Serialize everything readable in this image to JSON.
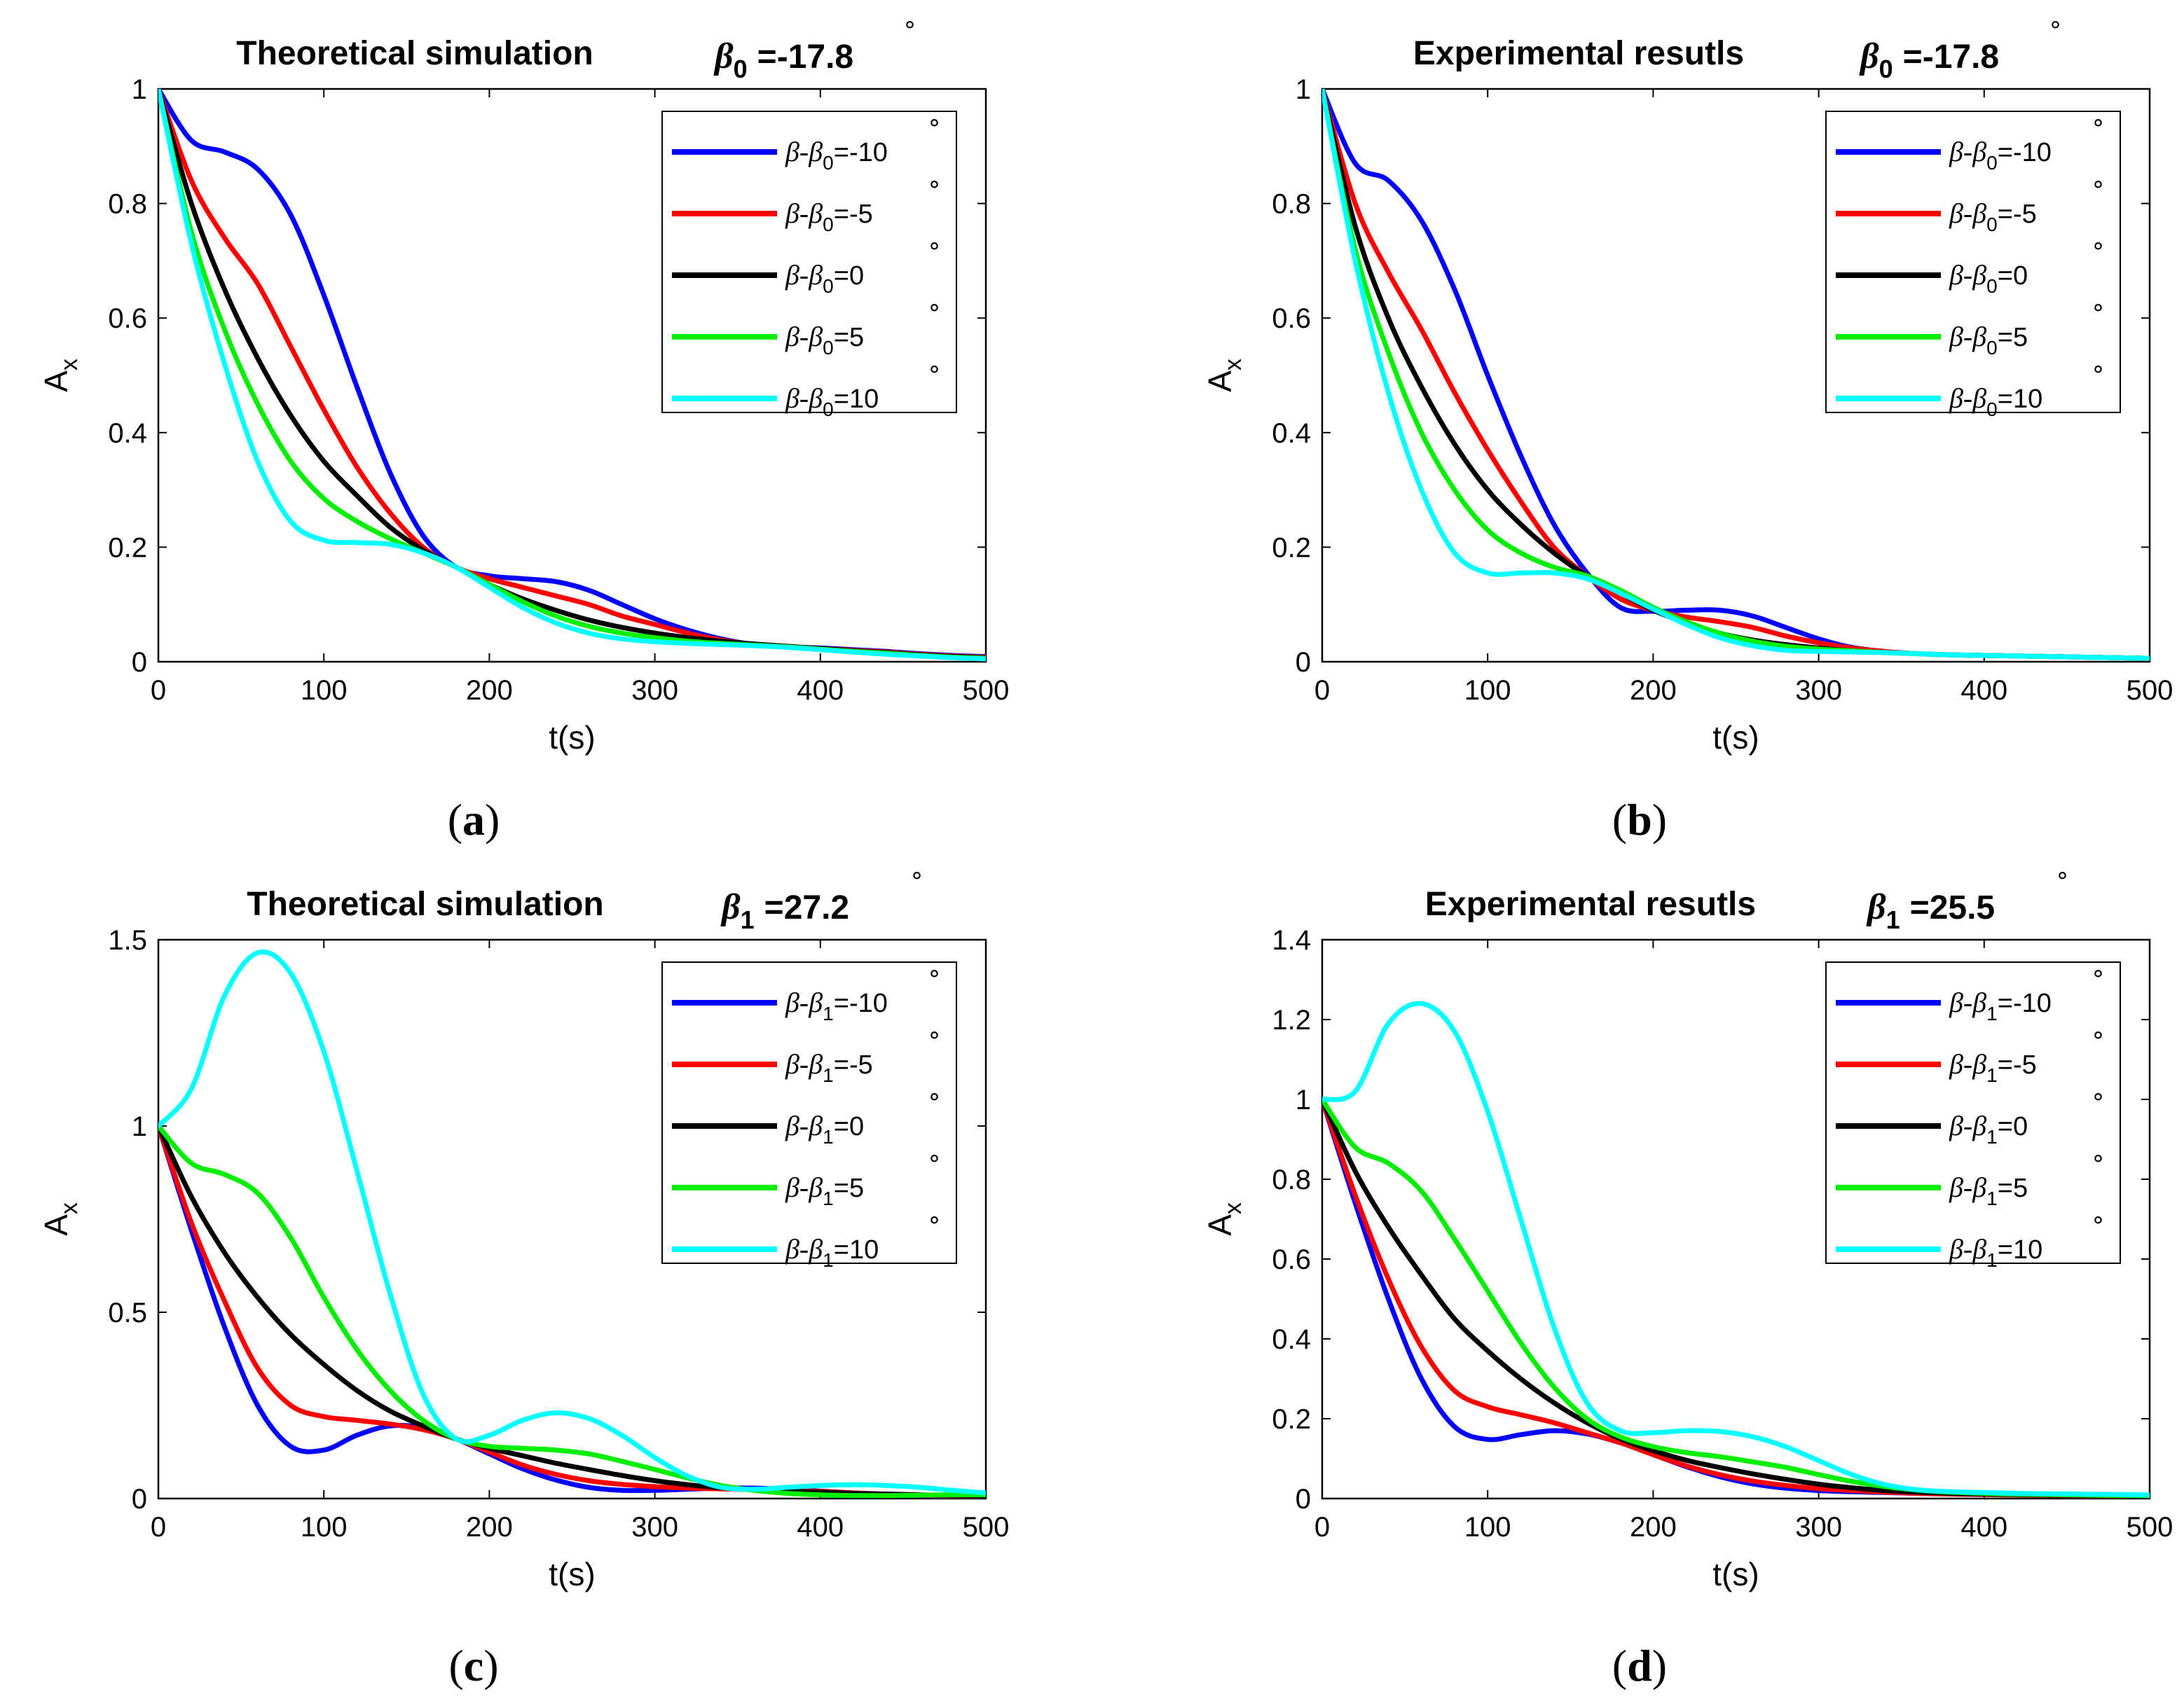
{
  "chart_data": [
    {
      "type": "line",
      "panel_label": "a",
      "title": "Theoretical simulation",
      "beta_symbol": "β",
      "beta_sub": "0",
      "beta_value": "=-17.8",
      "degree": "°",
      "xlabel": "t(s)",
      "ylabel_main": "A",
      "ylabel_sub": "x",
      "xlim": [
        0,
        500
      ],
      "ylim": [
        0,
        1
      ],
      "xticks": [
        0,
        100,
        200,
        300,
        400,
        500
      ],
      "yticks": [
        0,
        0.2,
        0.4,
        0.6,
        0.8,
        1
      ],
      "legend_position": "top-right",
      "grid": false,
      "x": [
        0,
        20,
        40,
        60,
        80,
        100,
        120,
        140,
        160,
        180,
        200,
        220,
        240,
        260,
        280,
        300,
        320,
        340,
        360,
        380,
        400,
        420,
        440,
        460,
        480,
        500
      ],
      "series": [
        {
          "name": "β-β0=-10",
          "legend_pre": "β-β",
          "legend_sub": "0",
          "legend_post": "=-10",
          "color": "#0000ff",
          "values": [
            1.0,
            0.91,
            0.89,
            0.86,
            0.78,
            0.64,
            0.48,
            0.33,
            0.22,
            0.165,
            0.15,
            0.145,
            0.14,
            0.125,
            0.1,
            0.075,
            0.055,
            0.04,
            0.03,
            0.026,
            0.024,
            0.021,
            0.018,
            0.014,
            0.011,
            0.009
          ]
        },
        {
          "name": "β-β0=-5",
          "legend_pre": "β-β",
          "legend_sub": "0",
          "legend_post": "=-5",
          "color": "#ff0000",
          "values": [
            1.0,
            0.84,
            0.74,
            0.66,
            0.55,
            0.44,
            0.34,
            0.26,
            0.2,
            0.165,
            0.145,
            0.13,
            0.115,
            0.1,
            0.08,
            0.065,
            0.05,
            0.038,
            0.03,
            0.026,
            0.023,
            0.02,
            0.017,
            0.013,
            0.01,
            0.008
          ]
        },
        {
          "name": "β-β0=0",
          "legend_pre": "β-β",
          "legend_sub": "0",
          "legend_post": "=0",
          "color": "#000000",
          "values": [
            1.0,
            0.8,
            0.65,
            0.53,
            0.43,
            0.35,
            0.29,
            0.235,
            0.195,
            0.165,
            0.135,
            0.11,
            0.09,
            0.073,
            0.06,
            0.05,
            0.042,
            0.036,
            0.031,
            0.027,
            0.023,
            0.019,
            0.016,
            0.012,
            0.009,
            0.007
          ]
        },
        {
          "name": "β-β0=5",
          "legend_pre": "β-β",
          "legend_sub": "0",
          "legend_post": "=5",
          "color": "#00ee00",
          "values": [
            1.0,
            0.75,
            0.58,
            0.45,
            0.35,
            0.285,
            0.245,
            0.215,
            0.19,
            0.165,
            0.135,
            0.105,
            0.08,
            0.062,
            0.05,
            0.042,
            0.036,
            0.032,
            0.029,
            0.026,
            0.022,
            0.018,
            0.015,
            0.011,
            0.008,
            0.006
          ]
        },
        {
          "name": "β-β0=10",
          "legend_pre": "β-β",
          "legend_sub": "0",
          "legend_post": "=10",
          "color": "#00ffff",
          "values": [
            1.0,
            0.73,
            0.52,
            0.35,
            0.245,
            0.212,
            0.208,
            0.205,
            0.19,
            0.165,
            0.13,
            0.095,
            0.068,
            0.05,
            0.04,
            0.035,
            0.032,
            0.03,
            0.028,
            0.025,
            0.021,
            0.017,
            0.013,
            0.01,
            0.007,
            0.005
          ]
        }
      ]
    },
    {
      "type": "line",
      "panel_label": "b",
      "title": "Experimental resutls",
      "beta_symbol": "β",
      "beta_sub": "0",
      "beta_value": "=-17.8",
      "degree": "°",
      "xlabel": "t(s)",
      "ylabel_main": "A",
      "ylabel_sub": "x",
      "xlim": [
        0,
        500
      ],
      "ylim": [
        0,
        1
      ],
      "xticks": [
        0,
        100,
        200,
        300,
        400,
        500
      ],
      "yticks": [
        0,
        0.2,
        0.4,
        0.6,
        0.8,
        1
      ],
      "legend_position": "top-right",
      "grid": false,
      "x": [
        0,
        20,
        40,
        60,
        80,
        100,
        120,
        140,
        160,
        180,
        200,
        220,
        240,
        260,
        280,
        300,
        320,
        340,
        360,
        380,
        400,
        420,
        440,
        460,
        480,
        500
      ],
      "series": [
        {
          "name": "β-β0=-10",
          "legend_pre": "β-β",
          "legend_sub": "0",
          "legend_post": "=-10",
          "color": "#0000ff",
          "values": [
            1.0,
            0.87,
            0.84,
            0.77,
            0.65,
            0.5,
            0.36,
            0.24,
            0.155,
            0.095,
            0.088,
            0.09,
            0.09,
            0.08,
            0.06,
            0.04,
            0.025,
            0.018,
            0.014,
            0.012,
            0.011,
            0.01,
            0.009,
            0.008,
            0.007,
            0.006
          ]
        },
        {
          "name": "β-β0=-5",
          "legend_pre": "β-β",
          "legend_sub": "0",
          "legend_post": "=-5",
          "color": "#ff0000",
          "values": [
            1.0,
            0.8,
            0.68,
            0.58,
            0.47,
            0.37,
            0.28,
            0.2,
            0.15,
            0.11,
            0.09,
            0.078,
            0.07,
            0.06,
            0.045,
            0.033,
            0.024,
            0.018,
            0.014,
            0.012,
            0.011,
            0.01,
            0.009,
            0.008,
            0.007,
            0.006
          ]
        },
        {
          "name": "β-β0=0",
          "legend_pre": "β-β",
          "legend_sub": "0",
          "legend_post": "=0",
          "color": "#000000",
          "values": [
            1.0,
            0.76,
            0.6,
            0.48,
            0.38,
            0.3,
            0.24,
            0.19,
            0.15,
            0.12,
            0.09,
            0.068,
            0.05,
            0.038,
            0.03,
            0.024,
            0.019,
            0.016,
            0.014,
            0.012,
            0.011,
            0.01,
            0.009,
            0.008,
            0.007,
            0.006
          ]
        },
        {
          "name": "β-β0=5",
          "legend_pre": "β-β",
          "legend_sub": "0",
          "legend_post": "=5",
          "color": "#00ee00",
          "values": [
            1.0,
            0.72,
            0.54,
            0.4,
            0.3,
            0.23,
            0.19,
            0.165,
            0.15,
            0.125,
            0.095,
            0.07,
            0.05,
            0.036,
            0.027,
            0.022,
            0.019,
            0.016,
            0.014,
            0.012,
            0.011,
            0.01,
            0.009,
            0.008,
            0.007,
            0.006
          ]
        },
        {
          "name": "β-β0=10",
          "legend_pre": "β-β",
          "legend_sub": "0",
          "legend_post": "=10",
          "color": "#00ffff",
          "values": [
            1.0,
            0.7,
            0.47,
            0.3,
            0.19,
            0.155,
            0.155,
            0.155,
            0.145,
            0.12,
            0.092,
            0.065,
            0.042,
            0.028,
            0.02,
            0.018,
            0.017,
            0.016,
            0.014,
            0.012,
            0.011,
            0.01,
            0.009,
            0.008,
            0.007,
            0.006
          ]
        }
      ]
    },
    {
      "type": "line",
      "panel_label": "c",
      "title": "Theoretical simulation",
      "beta_symbol": "β",
      "beta_sub": "1",
      "beta_value": "=27.2",
      "degree": "°",
      "xlabel": "t(s)",
      "ylabel_main": "A",
      "ylabel_sub": "x",
      "xlim": [
        0,
        500
      ],
      "ylim": [
        0,
        1.5
      ],
      "xticks": [
        0,
        100,
        200,
        300,
        400,
        500
      ],
      "yticks": [
        0,
        0.5,
        1,
        1.5
      ],
      "legend_position": "top-right",
      "grid": false,
      "x": [
        0,
        20,
        40,
        60,
        80,
        100,
        120,
        140,
        160,
        180,
        200,
        220,
        240,
        260,
        280,
        300,
        320,
        340,
        360,
        380,
        400,
        420,
        440,
        460,
        480,
        500
      ],
      "series": [
        {
          "name": "β-β1=-10",
          "legend_pre": "β-β",
          "legend_sub": "1",
          "legend_post": "=-10",
          "color": "#0000ff",
          "values": [
            1.0,
            0.72,
            0.46,
            0.25,
            0.14,
            0.13,
            0.17,
            0.195,
            0.19,
            0.16,
            0.12,
            0.08,
            0.05,
            0.03,
            0.022,
            0.022,
            0.025,
            0.028,
            0.028,
            0.025,
            0.02,
            0.015,
            0.011,
            0.008,
            0.006,
            0.005
          ]
        },
        {
          "name": "β-β1=-5",
          "legend_pre": "β-β",
          "legend_sub": "1",
          "legend_post": "=-5",
          "color": "#ff0000",
          "values": [
            1.0,
            0.74,
            0.53,
            0.35,
            0.25,
            0.22,
            0.21,
            0.2,
            0.185,
            0.16,
            0.125,
            0.09,
            0.065,
            0.048,
            0.038,
            0.032,
            0.028,
            0.026,
            0.024,
            0.022,
            0.019,
            0.015,
            0.012,
            0.009,
            0.007,
            0.006
          ]
        },
        {
          "name": "β-β1=0",
          "legend_pre": "β-β",
          "legend_sub": "1",
          "legend_post": "=0",
          "color": "#000000",
          "values": [
            1.0,
            0.81,
            0.66,
            0.54,
            0.44,
            0.36,
            0.29,
            0.235,
            0.195,
            0.16,
            0.135,
            0.115,
            0.095,
            0.078,
            0.062,
            0.048,
            0.037,
            0.029,
            0.024,
            0.02,
            0.017,
            0.014,
            0.012,
            0.01,
            0.008,
            0.007
          ]
        },
        {
          "name": "β-β1=5",
          "legend_pre": "β-β",
          "legend_sub": "1",
          "legend_post": "=5",
          "color": "#00ee00",
          "values": [
            1.0,
            0.9,
            0.87,
            0.82,
            0.7,
            0.54,
            0.4,
            0.29,
            0.21,
            0.16,
            0.14,
            0.135,
            0.13,
            0.12,
            0.1,
            0.078,
            0.055,
            0.035,
            0.022,
            0.014,
            0.01,
            0.008,
            0.008,
            0.009,
            0.01,
            0.01
          ]
        },
        {
          "name": "β-β1=10",
          "legend_pre": "β-β",
          "legend_sub": "1",
          "legend_post": "=10",
          "color": "#00ffff",
          "values": [
            1.0,
            1.1,
            1.35,
            1.465,
            1.41,
            1.2,
            0.88,
            0.55,
            0.28,
            0.16,
            0.17,
            0.21,
            0.23,
            0.215,
            0.17,
            0.11,
            0.06,
            0.03,
            0.025,
            0.03,
            0.035,
            0.037,
            0.035,
            0.03,
            0.022,
            0.015
          ]
        }
      ]
    },
    {
      "type": "line",
      "panel_label": "d",
      "title": "Experimental resutls",
      "beta_symbol": "β",
      "beta_sub": "1",
      "beta_value": "=25.5",
      "degree": "°",
      "xlabel": "t(s)",
      "ylabel_main": "A",
      "ylabel_sub": "x",
      "xlim": [
        0,
        500
      ],
      "ylim": [
        0,
        1.4
      ],
      "xticks": [
        0,
        100,
        200,
        300,
        400,
        500
      ],
      "yticks": [
        0,
        0.2,
        0.4,
        0.6,
        0.8,
        1,
        1.2,
        1.4
      ],
      "legend_position": "top-right",
      "grid": false,
      "x": [
        0,
        20,
        40,
        60,
        80,
        100,
        120,
        140,
        160,
        180,
        200,
        220,
        240,
        260,
        280,
        300,
        320,
        340,
        360,
        380,
        400,
        420,
        440,
        460,
        480,
        500
      ],
      "series": [
        {
          "name": "β-β1=-10",
          "legend_pre": "β-β",
          "legend_sub": "1",
          "legend_post": "=-10",
          "color": "#0000ff",
          "values": [
            1.0,
            0.74,
            0.5,
            0.3,
            0.18,
            0.148,
            0.16,
            0.17,
            0.162,
            0.14,
            0.11,
            0.08,
            0.055,
            0.037,
            0.026,
            0.02,
            0.017,
            0.015,
            0.013,
            0.012,
            0.011,
            0.01,
            0.009,
            0.008,
            0.007,
            0.006
          ]
        },
        {
          "name": "β-β1=-5",
          "legend_pre": "β-β",
          "legend_sub": "1",
          "legend_post": "=-5",
          "color": "#ff0000",
          "values": [
            1.0,
            0.76,
            0.55,
            0.38,
            0.27,
            0.23,
            0.21,
            0.19,
            0.165,
            0.14,
            0.11,
            0.082,
            0.06,
            0.044,
            0.033,
            0.025,
            0.02,
            0.016,
            0.013,
            0.011,
            0.01,
            0.009,
            0.008,
            0.007,
            0.006,
            0.005
          ]
        },
        {
          "name": "β-β1=0",
          "legend_pre": "β-β",
          "legend_sub": "1",
          "legend_post": "=0",
          "color": "#000000",
          "values": [
            1.0,
            0.82,
            0.68,
            0.56,
            0.45,
            0.37,
            0.3,
            0.24,
            0.19,
            0.15,
            0.12,
            0.096,
            0.078,
            0.062,
            0.048,
            0.036,
            0.027,
            0.02,
            0.016,
            0.013,
            0.011,
            0.01,
            0.009,
            0.008,
            0.007,
            0.006
          ]
        },
        {
          "name": "β-β1=5",
          "legend_pre": "β-β",
          "legend_sub": "1",
          "legend_post": "=5",
          "color": "#00ee00",
          "values": [
            1.0,
            0.88,
            0.84,
            0.77,
            0.65,
            0.52,
            0.39,
            0.28,
            0.2,
            0.155,
            0.13,
            0.115,
            0.105,
            0.092,
            0.078,
            0.06,
            0.043,
            0.03,
            0.021,
            0.016,
            0.013,
            0.011,
            0.01,
            0.009,
            0.008,
            0.007
          ]
        },
        {
          "name": "β-β1=10",
          "legend_pre": "β-β",
          "legend_sub": "1",
          "legend_post": "=10",
          "color": "#00ffff",
          "values": [
            1.0,
            1.02,
            1.19,
            1.24,
            1.17,
            0.97,
            0.7,
            0.43,
            0.24,
            0.17,
            0.165,
            0.17,
            0.168,
            0.155,
            0.13,
            0.095,
            0.06,
            0.035,
            0.022,
            0.017,
            0.015,
            0.013,
            0.012,
            0.011,
            0.01,
            0.009
          ]
        }
      ]
    }
  ]
}
